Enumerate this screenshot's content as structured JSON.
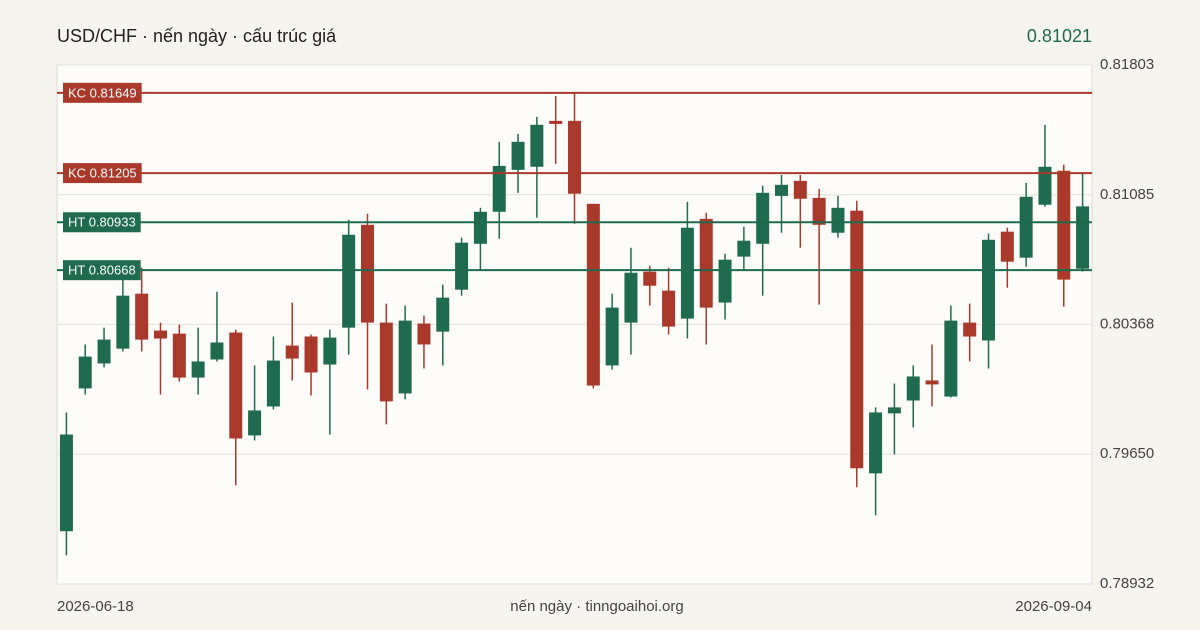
{
  "chart_data": {
    "type": "candlestick",
    "title": "USD/CHF · nến ngày · cấu trúc giá",
    "caption": "nến ngày · tinngoaihoi.org",
    "categories": [
      "2026-06-18",
      null,
      null,
      null,
      null,
      null,
      null,
      null,
      null,
      null,
      null,
      null,
      null,
      null,
      null,
      null,
      null,
      null,
      null,
      null,
      null,
      null,
      null,
      null,
      null,
      null,
      null,
      null,
      null,
      null,
      null,
      null,
      null,
      null,
      null,
      null,
      null,
      null,
      null,
      null,
      null,
      null,
      null,
      null,
      null,
      null,
      null,
      null,
      null,
      null,
      null,
      null,
      null,
      null,
      "2026-09-04"
    ],
    "open": [
      0.79224,
      0.80014,
      0.80152,
      0.80234,
      0.80538,
      0.80334,
      0.80317,
      0.80074,
      0.80174,
      0.80323,
      0.79754,
      0.79914,
      0.80251,
      0.80301,
      0.80146,
      0.8035,
      0.80919,
      0.80378,
      0.79986,
      0.80373,
      0.80328,
      0.8056,
      0.80814,
      0.80991,
      0.81223,
      0.8124,
      0.81494,
      0.81494,
      0.81035,
      0.80141,
      0.80378,
      0.8066,
      0.80555,
      0.804,
      0.80952,
      0.80489,
      0.80743,
      0.80814,
      0.81079,
      0.81162,
      0.81068,
      0.80875,
      0.80997,
      0.79544,
      0.79876,
      0.79947,
      0.80058,
      0.79969,
      0.80378,
      0.80279,
      0.80881,
      0.80737,
      0.8103,
      0.81218,
      0.80676
    ],
    "high": [
      0.79881,
      0.80257,
      0.8035,
      0.80616,
      0.80682,
      0.80378,
      0.80367,
      0.8035,
      0.80549,
      0.80339,
      0.80141,
      0.80301,
      0.80489,
      0.80312,
      0.80339,
      0.80947,
      0.8098,
      0.80483,
      0.80472,
      0.80417,
      0.80588,
      0.80848,
      0.81013,
      0.81378,
      0.81422,
      0.81516,
      0.81632,
      0.81654,
      0.81035,
      0.80538,
      0.80792,
      0.80693,
      0.80682,
      0.81046,
      0.80986,
      0.80759,
      0.80908,
      0.81135,
      0.81195,
      0.81195,
      0.81118,
      0.81079,
      0.81052,
      0.79909,
      0.80041,
      0.80141,
      0.80257,
      0.80472,
      0.80483,
      0.8087,
      0.80903,
      0.81151,
      0.81472,
      0.81251,
      0.81207
    ],
    "low": [
      0.79091,
      0.7998,
      0.8013,
      0.80218,
      0.80218,
      0.7998,
      0.80052,
      0.7998,
      0.80163,
      0.79478,
      0.79726,
      0.79898,
      0.80058,
      0.79975,
      0.79759,
      0.80201,
      0.80008,
      0.79815,
      0.79953,
      0.80124,
      0.80141,
      0.80527,
      0.80665,
      0.80842,
      0.81096,
      0.80958,
      0.81256,
      0.80925,
      0.80014,
      0.80118,
      0.80201,
      0.80472,
      0.80312,
      0.8029,
      0.80257,
      0.80395,
      0.80671,
      0.80527,
      0.80875,
      0.80792,
      0.80477,
      0.80848,
      0.79467,
      0.79312,
      0.79649,
      0.79798,
      0.79914,
      0.79964,
      0.80163,
      0.80124,
      0.80571,
      0.80687,
      0.81019,
      0.80466,
      0.8066
    ],
    "close": [
      0.79759,
      0.8019,
      0.80284,
      0.80527,
      0.80284,
      0.8029,
      0.80074,
      0.80163,
      0.80268,
      0.79737,
      0.79892,
      0.80168,
      0.80179,
      0.80102,
      0.80295,
      0.80864,
      0.80378,
      0.79942,
      0.80389,
      0.80257,
      0.80516,
      0.8082,
      0.80991,
      0.81245,
      0.81378,
      0.81472,
      0.81477,
      0.81091,
      0.8003,
      0.80461,
      0.80654,
      0.80582,
      0.80356,
      0.80903,
      0.80461,
      0.80726,
      0.80831,
      0.81096,
      0.8114,
      0.81063,
      0.80919,
      0.81013,
      0.79572,
      0.79881,
      0.79909,
      0.8008,
      0.80036,
      0.80389,
      0.80301,
      0.80836,
      0.80715,
      0.81074,
      0.8124,
      0.80616,
      0.81021
    ],
    "up_color": "#1e6b4f",
    "down_color": "#a8392b",
    "ylim": [
      0.78932,
      0.81803
    ],
    "yticks": [
      0.78932,
      {
        "value": 0.7965,
        "label": "0.79650"
      },
      0.80368,
      0.81085,
      0.81803
    ],
    "grid": true,
    "levels": [
      {
        "label": "KC 0.81649",
        "value": 0.81649,
        "color": "#a8392b"
      },
      {
        "label": "KC 0.81205",
        "value": 0.81205,
        "color": "#a8392b"
      },
      {
        "label": "HT 0.80933",
        "value": 0.80933,
        "color": "#1e6b4f"
      },
      {
        "label": "HT 0.80668",
        "value": 0.80668,
        "color": "#1e6b4f"
      }
    ]
  }
}
